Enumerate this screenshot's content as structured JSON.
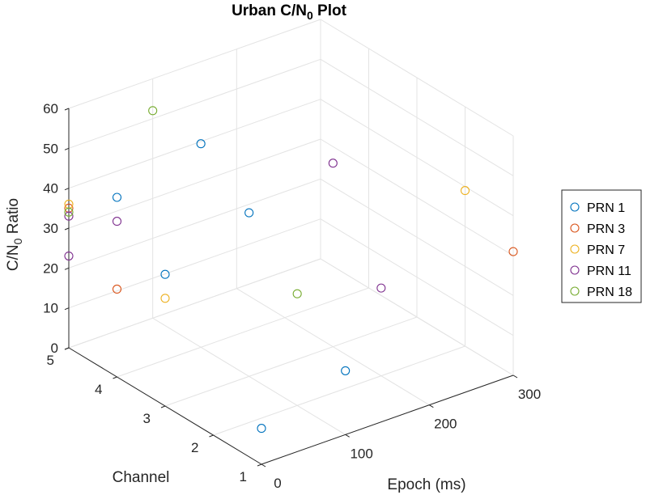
{
  "chart_data": {
    "type": "scatter3d",
    "title": "Urban C/N",
    "title_sub": "0",
    "title_tail": " Plot",
    "xlabel": "Epoch (ms)",
    "ylabel": "Channel",
    "zlabel": "C/N",
    "zlabel_sub": "0",
    "zlabel_tail": " Ratio",
    "xlim": [
      0,
      300
    ],
    "ylim": [
      1,
      5
    ],
    "zlim": [
      0,
      60
    ],
    "xticks": [
      "0",
      "100",
      "200",
      "300"
    ],
    "yticks": [
      "1",
      "2",
      "3",
      "4",
      "5"
    ],
    "zticks": [
      "0",
      "10",
      "20",
      "30",
      "40",
      "50",
      "60"
    ],
    "grid": true,
    "legend_position": "right",
    "series": [
      {
        "name": "PRN 1",
        "color": "#0072BD",
        "points": [
          {
            "x": 0,
            "y": 1,
            "z": 9
          },
          {
            "x": 0,
            "y": 3,
            "z": 33
          },
          {
            "x": 0,
            "y": 4,
            "z": 45
          },
          {
            "x": 100,
            "y": 1,
            "z": 16
          },
          {
            "x": 100,
            "y": 3,
            "z": 41
          },
          {
            "x": 100,
            "y": 4,
            "z": 51
          }
        ]
      },
      {
        "name": "PRN 3",
        "color": "#D95319",
        "points": [
          {
            "x": 0,
            "y": 4,
            "z": 22
          },
          {
            "x": 0,
            "y": 5,
            "z": 35
          },
          {
            "x": 300,
            "y": 1,
            "z": 31
          }
        ]
      },
      {
        "name": "PRN 7",
        "color": "#EDB120",
        "points": [
          {
            "x": 0,
            "y": 3,
            "z": 27
          },
          {
            "x": 0,
            "y": 5,
            "z": 36
          },
          {
            "x": 300,
            "y": 2,
            "z": 39
          }
        ]
      },
      {
        "name": "PRN 11",
        "color": "#7E2F8E",
        "points": [
          {
            "x": 0,
            "y": 4,
            "z": 39
          },
          {
            "x": 0,
            "y": 5,
            "z": 23
          },
          {
            "x": 0,
            "y": 5,
            "z": 33
          },
          {
            "x": 200,
            "y": 2,
            "z": 22
          },
          {
            "x": 200,
            "y": 3,
            "z": 46
          }
        ]
      },
      {
        "name": "PRN 18",
        "color": "#77AC30",
        "points": [
          {
            "x": 0,
            "y": 5,
            "z": 34
          },
          {
            "x": 100,
            "y": 2,
            "z": 28
          },
          {
            "x": 100,
            "y": 5,
            "z": 52
          }
        ]
      }
    ]
  }
}
